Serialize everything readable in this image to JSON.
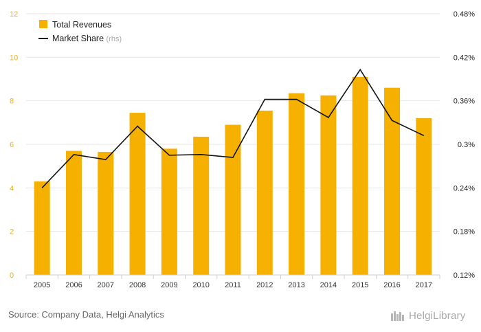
{
  "chart_data": {
    "type": "bar",
    "categories": [
      "2005",
      "2006",
      "2007",
      "2008",
      "2009",
      "2010",
      "2011",
      "2012",
      "2013",
      "2014",
      "2015",
      "2016",
      "2017"
    ],
    "series": [
      {
        "name": "Total Revenues",
        "type": "bar",
        "axis": "left",
        "color": "#F5B000",
        "values": [
          4.3,
          5.7,
          5.65,
          7.45,
          5.8,
          6.35,
          6.9,
          7.55,
          8.35,
          8.25,
          9.1,
          8.6,
          7.2
        ]
      },
      {
        "name": "Market Share",
        "name_suffix": "(rhs)",
        "type": "line",
        "axis": "right",
        "color": "#111111",
        "values": [
          0.24,
          0.286,
          0.279,
          0.325,
          0.285,
          0.286,
          0.282,
          0.362,
          0.362,
          0.337,
          0.403,
          0.333,
          0.312
        ]
      }
    ],
    "y_left": {
      "min": 0,
      "max": 12,
      "ticks": [
        "0",
        "2",
        "4",
        "6",
        "8",
        "10",
        "12"
      ],
      "color": "#F5B000"
    },
    "y_right": {
      "min": 0.12,
      "max": 0.48,
      "ticks": [
        "0.12%",
        "0.18%",
        "0.24%",
        "0.3%",
        "0.36%",
        "0.42%",
        "0.48%"
      ]
    },
    "grid": "horizontal",
    "legend_position": "top-left"
  },
  "source": "Source: Company Data, Helgi Analytics",
  "logo": "HelgiLibrary"
}
